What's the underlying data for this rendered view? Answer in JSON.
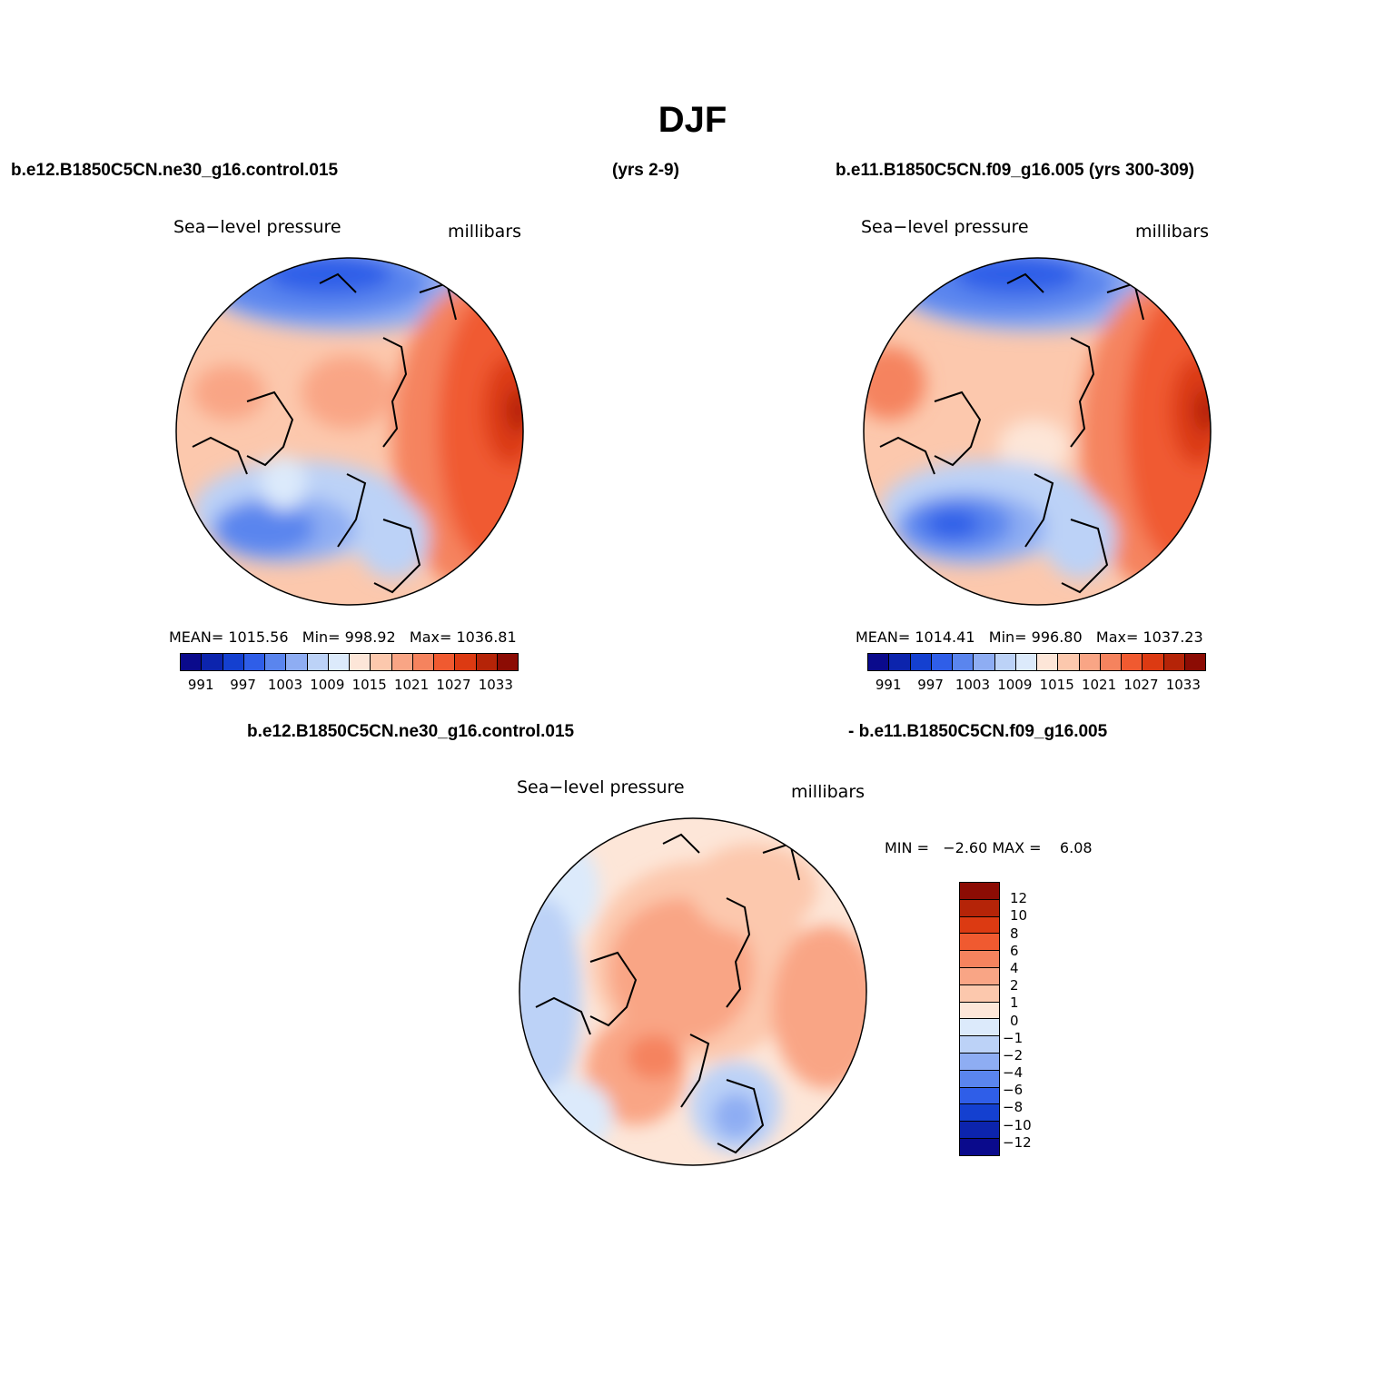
{
  "title": "DJF",
  "top_left": {
    "case": "b.e12.B1850C5CN.ne30_g16.control.015",
    "years": "(yrs 2-9)",
    "variable": "Sea−level pressure",
    "units": "millibars",
    "mean_label": "MEAN=",
    "mean": "1015.56",
    "min_label": "Min=",
    "min": "998.92",
    "max_label": "Max=",
    "max": "1036.81"
  },
  "top_right": {
    "case_years": "b.e11.B1850C5CN.f09_g16.005 (yrs 300-309)",
    "variable": "Sea−level pressure",
    "units": "millibars",
    "mean_label": "MEAN=",
    "mean": "1014.41",
    "min_label": "Min=",
    "min": "996.80",
    "max_label": "Max=",
    "max": "1037.23"
  },
  "bottom": {
    "case_a": "b.e12.B1850C5CN.ne30_g16.control.015",
    "case_b": "- b.e11.B1850C5CN.f09_g16.005",
    "variable": "Sea−level pressure",
    "units": "millibars",
    "min_label": "MIN =",
    "min": "−2.60",
    "max_label": "MAX =",
    "max": "6.08"
  },
  "abs_colorbar": {
    "colors": [
      "#0a0a8c",
      "#0c24ad",
      "#1440d0",
      "#2f5ee8",
      "#5a85ee",
      "#8eadf3",
      "#bcd2f7",
      "#dceafb",
      "#fde6d8",
      "#fcc8ad",
      "#f9a585",
      "#f5835e",
      "#f05a30",
      "#dc3a12",
      "#b52408",
      "#8c0c04"
    ],
    "labels": [
      "991",
      "997",
      "1003",
      "1009",
      "1015",
      "1021",
      "1027",
      "1033"
    ]
  },
  "diff_colorbar": {
    "colors": [
      "#8c0c04",
      "#b52408",
      "#dc3a12",
      "#f05a30",
      "#f5835e",
      "#f9a585",
      "#fcc8ad",
      "#fde6d8",
      "#dceafb",
      "#bcd2f7",
      "#8eadf3",
      "#5a85ee",
      "#2f5ee8",
      "#1440d0",
      "#0c24ad",
      "#0a0a8c"
    ],
    "labels": [
      "12",
      "10",
      "8",
      "6",
      "4",
      "2",
      "1",
      "0",
      "−1",
      "−2",
      "−4",
      "−6",
      "−8",
      "−10",
      "−12"
    ]
  }
}
